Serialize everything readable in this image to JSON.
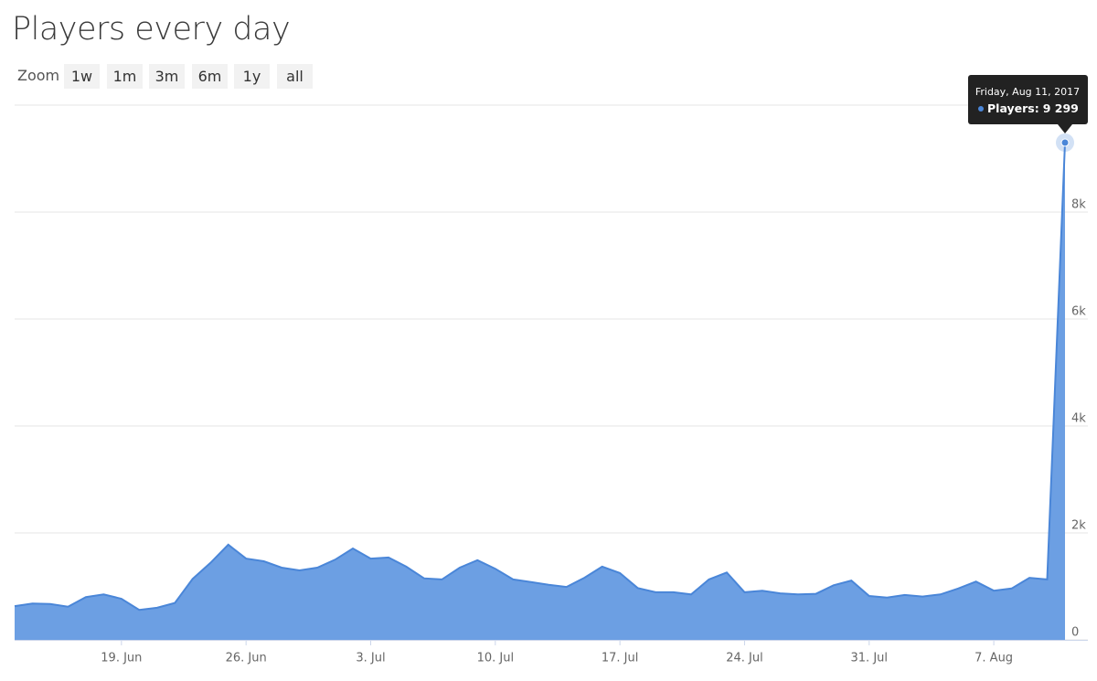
{
  "chart_data": {
    "type": "area",
    "title": "Players every day",
    "range_selector": {
      "label": "Zoom",
      "buttons": [
        "1w",
        "1m",
        "3m",
        "6m",
        "1y",
        "all"
      ]
    },
    "x": [
      "2017-06-13",
      "2017-06-14",
      "2017-06-15",
      "2017-06-16",
      "2017-06-17",
      "2017-06-18",
      "2017-06-19",
      "2017-06-20",
      "2017-06-21",
      "2017-06-22",
      "2017-06-23",
      "2017-06-24",
      "2017-06-25",
      "2017-06-26",
      "2017-06-27",
      "2017-06-28",
      "2017-06-29",
      "2017-06-30",
      "2017-07-01",
      "2017-07-02",
      "2017-07-03",
      "2017-07-04",
      "2017-07-05",
      "2017-07-06",
      "2017-07-07",
      "2017-07-08",
      "2017-07-09",
      "2017-07-10",
      "2017-07-11",
      "2017-07-12",
      "2017-07-13",
      "2017-07-14",
      "2017-07-15",
      "2017-07-16",
      "2017-07-17",
      "2017-07-18",
      "2017-07-19",
      "2017-07-20",
      "2017-07-21",
      "2017-07-22",
      "2017-07-23",
      "2017-07-24",
      "2017-07-25",
      "2017-07-26",
      "2017-07-27",
      "2017-07-28",
      "2017-07-29",
      "2017-07-30",
      "2017-07-31",
      "2017-08-01",
      "2017-08-02",
      "2017-08-03",
      "2017-08-04",
      "2017-08-05",
      "2017-08-06",
      "2017-08-07",
      "2017-08-08",
      "2017-08-09",
      "2017-08-10",
      "2017-08-11"
    ],
    "values": [
      630,
      680,
      670,
      620,
      800,
      850,
      770,
      560,
      600,
      690,
      1140,
      1440,
      1780,
      1520,
      1470,
      1350,
      1300,
      1350,
      1500,
      1710,
      1520,
      1540,
      1370,
      1150,
      1130,
      1350,
      1490,
      1330,
      1130,
      1080,
      1030,
      990,
      1160,
      1370,
      1250,
      970,
      890,
      890,
      850,
      1130,
      1260,
      890,
      920,
      870,
      850,
      860,
      1020,
      1110,
      820,
      790,
      840,
      810,
      850,
      960,
      1090,
      920,
      960,
      1160,
      1130,
      9299
    ],
    "color": "#6c9fe3",
    "line_color": "#4a86d8",
    "xlim": [
      "2017-06-13",
      "2017-08-11"
    ],
    "xticks": [
      {
        "value": "2017-06-19",
        "label": "19. Jun"
      },
      {
        "value": "2017-06-26",
        "label": "26. Jun"
      },
      {
        "value": "2017-07-03",
        "label": "3. Jul"
      },
      {
        "value": "2017-07-10",
        "label": "10. Jul"
      },
      {
        "value": "2017-07-17",
        "label": "17. Jul"
      },
      {
        "value": "2017-07-24",
        "label": "24. Jul"
      },
      {
        "value": "2017-07-31",
        "label": "31. Jul"
      },
      {
        "value": "2017-08-07",
        "label": "7. Aug"
      }
    ],
    "ylim": [
      0,
      10000
    ],
    "yticks": [
      0,
      {
        "value": 2000,
        "label": "2k"
      },
      {
        "value": 4000,
        "label": "4k"
      },
      {
        "value": 6000,
        "label": "6k"
      },
      {
        "value": 8000,
        "label": "8k"
      }
    ],
    "grid": true,
    "tooltip": {
      "header": "Friday, Aug 11, 2017",
      "label": "Players:",
      "value_label": "9 299"
    }
  }
}
